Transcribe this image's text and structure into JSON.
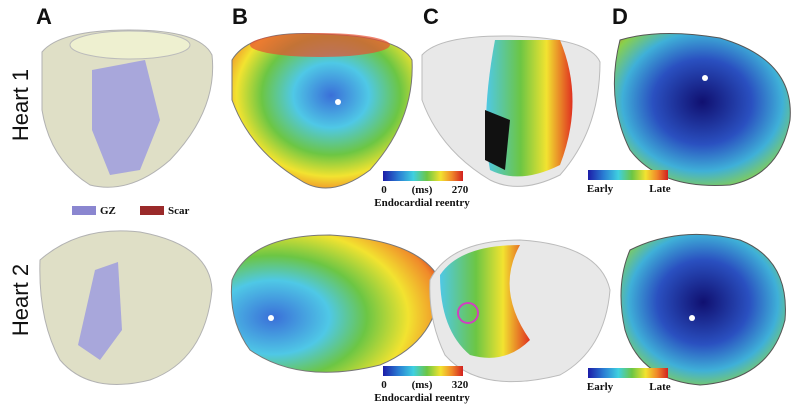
{
  "panels": [
    {
      "label": "A"
    },
    {
      "label": "B"
    },
    {
      "label": "C"
    },
    {
      "label": "D"
    }
  ],
  "rows": [
    {
      "label": "Heart 1"
    },
    {
      "label": "Heart 2"
    }
  ],
  "legend": [
    {
      "label": "GZ",
      "color": "#8a86d0"
    },
    {
      "label": "Scar",
      "color": "#9a2a2a"
    }
  ],
  "colorbars": [
    {
      "min": 0,
      "unit": "(ms)",
      "max": 270,
      "title": "Endocardial reentry"
    },
    {
      "min": 0,
      "unit": "(ms)",
      "max": 320,
      "title": "Endocardial reentry"
    },
    {
      "min_label": "Early",
      "max_label": "Late"
    },
    {
      "min_label": "Early",
      "max_label": "Late"
    }
  ]
}
